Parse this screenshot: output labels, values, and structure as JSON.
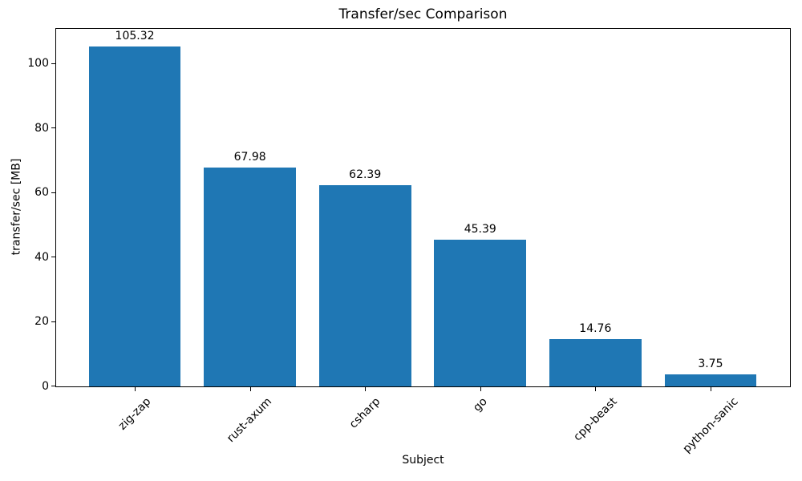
{
  "chart_data": {
    "type": "bar",
    "title": "Transfer/sec Comparison",
    "xlabel": "Subject",
    "ylabel": "transfer/sec [MB]",
    "categories": [
      "zig-zap",
      "rust-axum",
      "csharp",
      "go",
      "cpp-beast",
      "python-sanic"
    ],
    "values": [
      105.32,
      67.98,
      62.39,
      45.39,
      14.76,
      3.75
    ],
    "bar_value_labels": [
      "105.32",
      "67.98",
      "62.39",
      "45.39",
      "14.76",
      "3.75"
    ],
    "yticks": [
      0,
      20,
      40,
      60,
      80,
      100
    ],
    "ylim": [
      0,
      110.9
    ],
    "x_tick_rotation_deg": 45,
    "grid": false,
    "legend_position": "none",
    "bar_color": "#1f77b4",
    "axis_color": "#000000",
    "text_color": "#000000",
    "background_color": "#ffffff"
  }
}
